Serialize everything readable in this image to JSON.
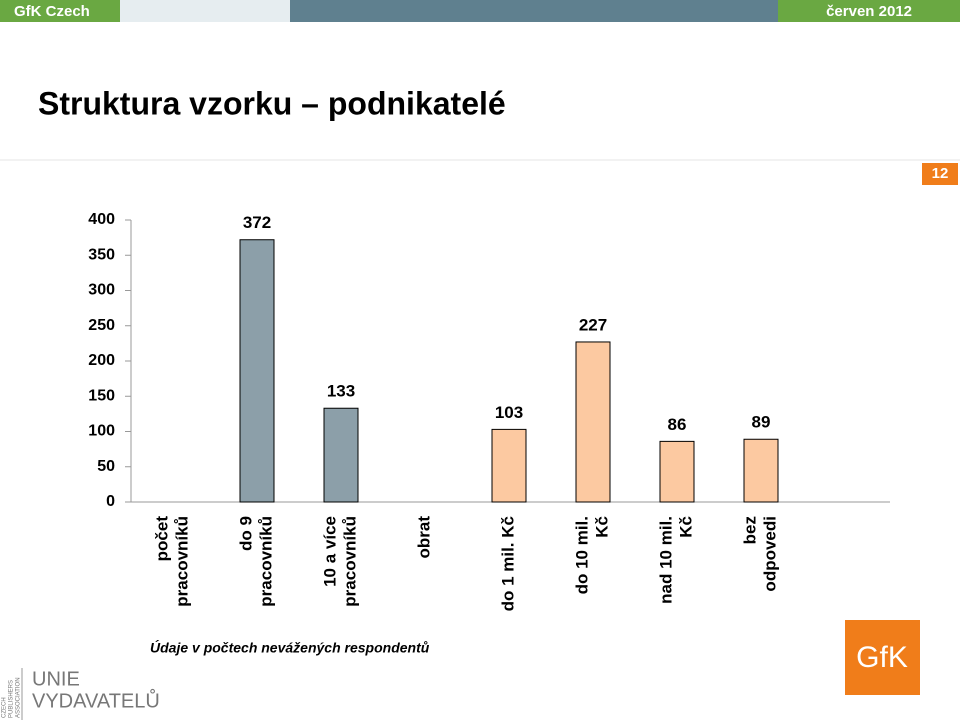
{
  "header": {
    "left": "GfK Czech",
    "right": "červen 2012"
  },
  "page_number": "12",
  "chart_data": {
    "type": "bar",
    "title": "Struktura vzorku – podnikatelé",
    "categories": [
      [
        "počet",
        "pracovníků"
      ],
      [
        "do 9",
        "pracovníků"
      ],
      [
        "10 a více",
        "pracovníků"
      ],
      [
        "obrat"
      ],
      [
        "do 1 mil. Kč"
      ],
      [
        "do 10 mil.",
        "Kč"
      ],
      [
        "nad 10 mil.",
        "Kč"
      ],
      [
        "bez",
        "odpovedi"
      ]
    ],
    "series": [
      {
        "color": "#8c9fa9",
        "values": [
          null,
          372,
          133,
          null,
          null,
          null,
          null,
          null
        ]
      },
      {
        "color": "#fcc9a1",
        "values": [
          null,
          null,
          null,
          null,
          103,
          227,
          86,
          89
        ]
      }
    ],
    "ylim": [
      0,
      400
    ],
    "yticks": [
      0,
      50,
      100,
      150,
      200,
      250,
      300,
      350,
      400
    ],
    "grid": false
  },
  "footnote": "Údaje v počtech nevážených respondentů",
  "logos": {
    "gfk": "GfK",
    "unie": "UNIE",
    "vydavatelu": "VYDAVATELŮ",
    "association": [
      "CZECH",
      "PUBLISHERS",
      "ASSOCIATION"
    ]
  }
}
